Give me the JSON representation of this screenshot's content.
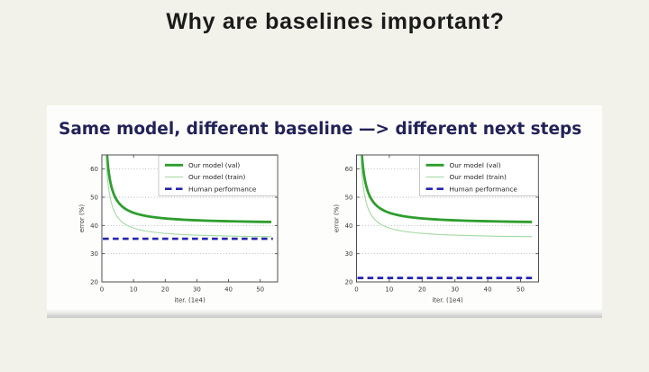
{
  "slide": {
    "title": "Why are baselines important?",
    "card_heading": "Same model, different baseline —> different next steps",
    "background_color": "#f2f1ea",
    "card_color": "#fdfdfc",
    "title_color": "#1b1b1b",
    "heading_color": "#23235f"
  },
  "chart_data": [
    {
      "type": "line",
      "title": "",
      "xlabel": "iter. (1e4)",
      "ylabel": "error (%)",
      "xlim": [
        0,
        55.5
      ],
      "ylim": [
        20,
        65
      ],
      "xticks": [
        0,
        10,
        20,
        30,
        40,
        50
      ],
      "yticks": [
        20,
        30,
        40,
        50,
        60
      ],
      "grid_y": [
        30,
        40,
        50,
        60
      ],
      "grid": "horizontal dotted",
      "legend_position": "upper right",
      "legend": [
        "Our model (val)",
        "Our model (train)",
        "Human performance"
      ],
      "series": [
        {
          "name": "Our model (val)",
          "color": "#2e9e2e",
          "width": 2.8,
          "style": "solid",
          "x": [
            1.63,
            1.81,
            2.0,
            2.22,
            2.46,
            2.73,
            3.02,
            3.35,
            3.71,
            4.11,
            4.56,
            5.05,
            5.59,
            6.2,
            6.87,
            7.61,
            8.43,
            9.35,
            10.36,
            11.48,
            12.72,
            14.09,
            15.61,
            17.3,
            19.17,
            21.24,
            23.54,
            26.08,
            28.9,
            32.03,
            35.49,
            39.32,
            43.57,
            48.28,
            53.5
          ],
          "y": [
            65.0,
            62.61,
            60.45,
            58.51,
            56.75,
            55.17,
            53.74,
            52.44,
            51.28,
            50.23,
            49.28,
            48.42,
            47.65,
            46.95,
            46.32,
            45.76,
            45.24,
            44.78,
            44.36,
            43.99,
            43.65,
            43.34,
            43.06,
            42.81,
            42.59,
            42.38,
            42.2,
            42.03,
            41.88,
            41.75,
            41.63,
            41.52,
            41.42,
            41.33,
            41.25
          ]
        },
        {
          "name": "Our model (train)",
          "color": "#a3d9a3",
          "width": 1.1,
          "style": "solid",
          "x": [
            1.28,
            1.43,
            1.59,
            1.78,
            1.99,
            2.22,
            2.47,
            2.76,
            3.08,
            3.44,
            3.84,
            4.28,
            4.78,
            5.33,
            5.95,
            6.64,
            7.41,
            8.27,
            9.23,
            10.31,
            11.5,
            12.84,
            14.33,
            15.99,
            17.84,
            19.91,
            22.23,
            24.81,
            27.68,
            30.9,
            34.48,
            38.49,
            42.95,
            47.94,
            53.5
          ],
          "y": [
            65.0,
            61.91,
            59.14,
            56.66,
            54.44,
            52.45,
            50.67,
            49.07,
            47.64,
            46.36,
            45.21,
            44.18,
            43.25,
            42.43,
            41.68,
            41.02,
            40.43,
            39.89,
            39.42,
            38.99,
            38.6,
            38.26,
            37.95,
            37.68,
            37.43,
            37.21,
            37.01,
            36.83,
            36.67,
            36.53,
            36.4,
            36.29,
            36.18,
            36.09,
            36.01
          ]
        },
        {
          "name": "Human performance",
          "color": "#2424ad",
          "width": 2.7,
          "style": "dashed",
          "x": [
            0.3,
            54.0
          ],
          "y": [
            35.3,
            35.3
          ]
        }
      ]
    },
    {
      "type": "line",
      "title": "",
      "xlabel": "iter. (1e4)",
      "ylabel": "error (%)",
      "xlim": [
        0,
        55.5
      ],
      "ylim": [
        20,
        65
      ],
      "xticks": [
        0,
        10,
        20,
        30,
        40,
        50
      ],
      "yticks": [
        20,
        30,
        40,
        50,
        60
      ],
      "grid_y": [
        30,
        40,
        50,
        60
      ],
      "grid": "horizontal dotted",
      "legend_position": "upper right",
      "legend": [
        "Our model (val)",
        "Our model (train)",
        "Human performance"
      ],
      "series": [
        {
          "name": "Our model (val)",
          "color": "#2e9e2e",
          "width": 2.8,
          "style": "solid",
          "x": [
            1.63,
            1.81,
            2.0,
            2.22,
            2.46,
            2.73,
            3.02,
            3.35,
            3.71,
            4.11,
            4.56,
            5.05,
            5.59,
            6.2,
            6.87,
            7.61,
            8.43,
            9.35,
            10.36,
            11.48,
            12.72,
            14.09,
            15.61,
            17.3,
            19.17,
            21.24,
            23.54,
            26.08,
            28.9,
            32.03,
            35.49,
            39.32,
            43.57,
            48.28,
            53.5
          ],
          "y": [
            65.0,
            62.61,
            60.45,
            58.51,
            56.75,
            55.17,
            53.74,
            52.44,
            51.28,
            50.23,
            49.28,
            48.42,
            47.65,
            46.95,
            46.32,
            45.76,
            45.24,
            44.78,
            44.36,
            43.99,
            43.65,
            43.34,
            43.06,
            42.81,
            42.59,
            42.38,
            42.2,
            42.03,
            41.88,
            41.75,
            41.63,
            41.52,
            41.42,
            41.33,
            41.25
          ]
        },
        {
          "name": "Our model (train)",
          "color": "#a3d9a3",
          "width": 1.1,
          "style": "solid",
          "x": [
            1.28,
            1.43,
            1.59,
            1.78,
            1.99,
            2.22,
            2.47,
            2.76,
            3.08,
            3.44,
            3.84,
            4.28,
            4.78,
            5.33,
            5.95,
            6.64,
            7.41,
            8.27,
            9.23,
            10.31,
            11.5,
            12.84,
            14.33,
            15.99,
            17.84,
            19.91,
            22.23,
            24.81,
            27.68,
            30.9,
            34.48,
            38.49,
            42.95,
            47.94,
            53.5
          ],
          "y": [
            65.0,
            61.91,
            59.14,
            56.66,
            54.44,
            52.45,
            50.67,
            49.07,
            47.64,
            46.36,
            45.21,
            44.18,
            43.25,
            42.43,
            41.68,
            41.02,
            40.43,
            39.89,
            39.42,
            38.99,
            38.6,
            38.26,
            37.95,
            37.68,
            37.43,
            37.21,
            37.01,
            36.83,
            36.67,
            36.53,
            36.4,
            36.29,
            36.18,
            36.09,
            36.01
          ]
        },
        {
          "name": "Human performance",
          "color": "#2424ad",
          "width": 2.7,
          "style": "dashed",
          "x": [
            0.3,
            54.0
          ],
          "y": [
            21.4,
            21.4
          ]
        }
      ]
    }
  ]
}
